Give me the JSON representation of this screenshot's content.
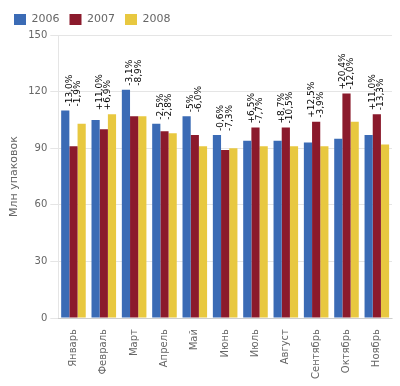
{
  "chart_data": {
    "type": "bar",
    "categories": [
      "Январь",
      "Февраль",
      "Март",
      "Апрель",
      "Май",
      "Июнь",
      "Июль",
      "Август",
      "Сентябрь",
      "Октябрь",
      "Ноябрь"
    ],
    "series": [
      {
        "name": "2006",
        "color": "#3B6BB5",
        "values": [
          110,
          105,
          121,
          103,
          107,
          97,
          94,
          94,
          93,
          95,
          97
        ]
      },
      {
        "name": "2007",
        "color": "#8B1A2C",
        "values": [
          91,
          100,
          107,
          99,
          97,
          89,
          101,
          101,
          104,
          119,
          108
        ],
        "annotations": [
          "-13,0%",
          "+11,0%",
          "-3,1%",
          "-2,5%",
          "-5%",
          "-0,6%",
          "+6,5%",
          "+8,7%",
          "+12,5%",
          "+20,4%",
          "+11,0%"
        ]
      },
      {
        "name": "2008",
        "color": "#E8C840",
        "values": [
          103,
          108,
          107,
          98,
          91,
          90,
          91,
          91,
          91,
          104,
          92
        ],
        "annotations": [
          "-1,9%",
          "+6,9%",
          "-8,9%",
          "-2,8%",
          "-6,0%",
          "-7,3%",
          "-7,7%",
          "-10,5%",
          "-3,9%",
          "-12,0%",
          "-13,3%"
        ]
      }
    ],
    "ylabel": "Млн упаковок",
    "ylim": [
      0,
      150
    ],
    "yticks": [
      0,
      30,
      60,
      90,
      120,
      150
    ],
    "grid": true,
    "legend": "upper left"
  }
}
